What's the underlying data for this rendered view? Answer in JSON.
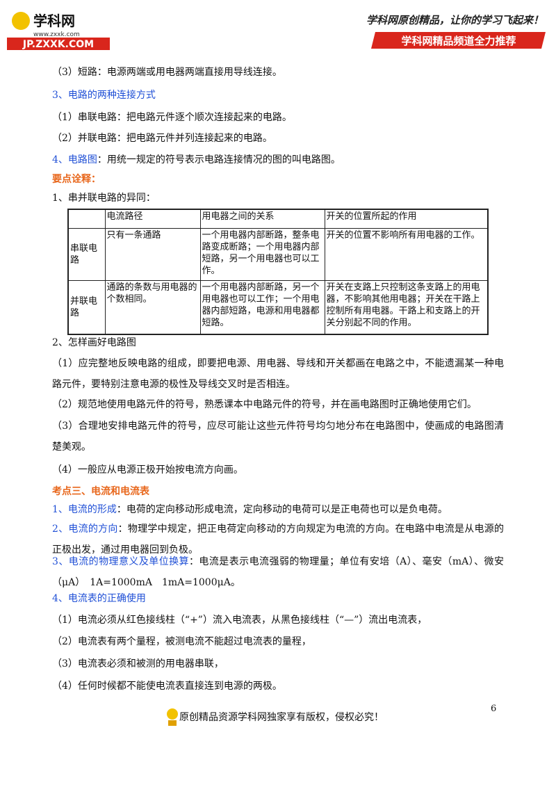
{
  "header": {
    "logo_text": "学科网",
    "logo_url": "www.zxxk.com",
    "site": "JP.ZXXK.COM",
    "slogan": "学科网原创精品，让你的学习飞起来！",
    "banner": "学科网精品频道全力推荐"
  },
  "body": [
    {
      "text": "（3）短路：电源两端或用电器两端直接用导线连接。"
    },
    {
      "label": "3、电路的两种连接方式"
    },
    {
      "text": "（1）串联电路：把电路元件逐个顺次连接起来的电路。"
    },
    {
      "text": "（2）并联电路：把电路元件并列连接起来的电路。"
    },
    {
      "label": "4、电路图",
      "text": "：用统一规定的符号表示电路连接情况的图的叫电路图。"
    },
    {
      "heading": "要点诠释："
    },
    {
      "text": "1、串并联电路的异同："
    }
  ],
  "table": {
    "header": [
      "电流路径",
      "用电器之间的关系",
      "开关的位置所起的作用"
    ],
    "rows": [
      [
        "串联电路",
        "只有一条通路",
        "一个用电器内部断路，整条电路变成断路；一个用电器内部短路，另一个用电器也可以工作。",
        "开关的位置不影响所有用电器的工作。"
      ],
      [
        "并联电路",
        "通路的条数与用电器的个数相同。",
        "一个用电器内部断路，另一个用电器也可以工作；一个用电器内部短路，电源和用电器都短路。",
        "开关在支路上只控制这条支路上的用电器，不影响其他用电器；开关在干路上控制所有用电器。干路上和支路上的开关分别起不同的作用。"
      ]
    ]
  },
  "body2": [
    {
      "text": "2、怎样画好电路图"
    },
    {
      "text": "（1）应完整地反映电路的组成，即要把电源、用电器、导线和开关都画在电路之中，不能遗漏某一种电路元件，要特别注意电源的极性及导线交叉时是否相连。"
    },
    {
      "text": "（2）规范地使用电路元件的符号，熟悉课本中电路元件的符号，并在画电路图时正确地使用它们。"
    },
    {
      "text": "（3）合理地安排电路元件的符号，应尽可能让这些元件符号均匀地分布在电路图中，使画成的电路图清楚美观。"
    },
    {
      "text": "（4）一般应从电源正极开始按电流方向画。"
    },
    {
      "heading": "考点三、电流和电流表"
    },
    {
      "label": "1、电流的形成",
      "text": "：电荷的定向移动形成电流，定向移动的电荷可以是正电荷也可以是负电荷。"
    },
    {
      "label": "2、电流的方向",
      "text": "：物理学中规定，把正电荷定向移动的方向规定为电流的方向。在电路中电流是从电源的正极出发，通过用电器回到负极。"
    },
    {
      "label": "3、电流的物理意义及单位换算",
      "text": "：电流是表示电流强弱的物理量；单位有安培（A）、毫安（mA）、微安（μA）　1A=1000mA　1mA=1000μA。"
    },
    {
      "label": "4、电流表的正确使用"
    },
    {
      "text": "（1）电流必须从红色接线柱（“+”）流入电流表，从黑色接线柱（“—”）流出电流表，"
    },
    {
      "text": "（2）电流表有两个量程，被测电流不能超过电流表的量程，"
    },
    {
      "text": "（3）电流表必须和被测的用电器串联，"
    },
    {
      "text": "（4）任何时候都不能使电流表直接连到电源的两极。"
    }
  ],
  "footer": {
    "page_number": "6",
    "notice": "原创精品资源学科网独家享有版权，侵权必究！"
  }
}
